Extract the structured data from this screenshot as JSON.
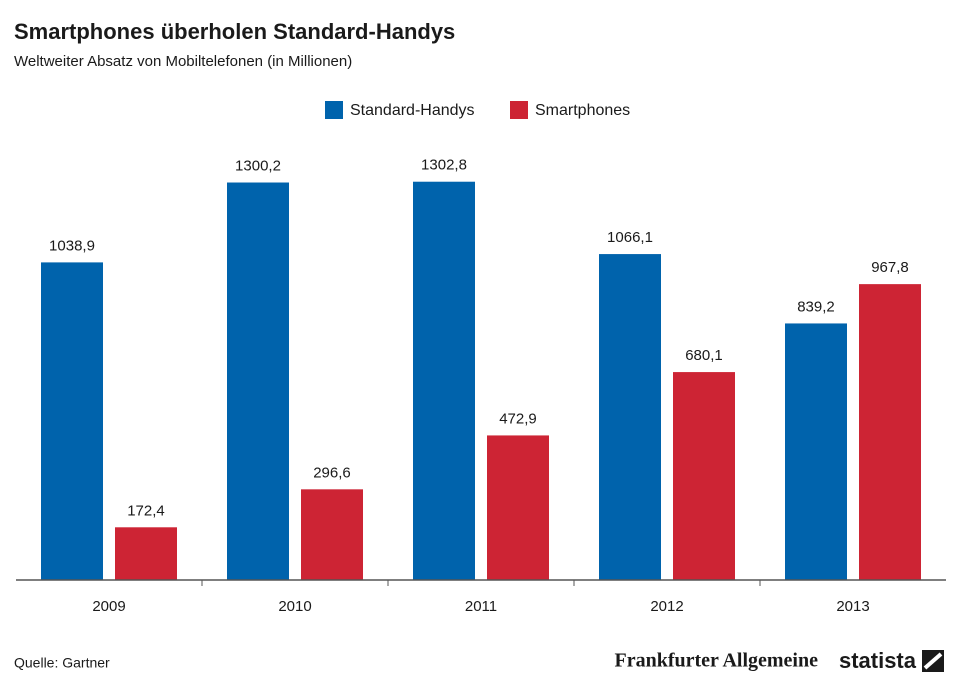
{
  "chart_data": {
    "type": "bar",
    "title": "Smartphones überholen Standard-Handys",
    "subtitle": "Weltweiter Absatz von Mobiltelefonen (in Millionen)",
    "categories": [
      "2009",
      "2010",
      "2011",
      "2012",
      "2013"
    ],
    "series": [
      {
        "name": "Standard-Handys",
        "color": "#0063ac",
        "values": [
          1038.9,
          1300.2,
          1302.8,
          1066.1,
          839.2
        ],
        "value_labels": [
          "1038,9",
          "1300,2",
          "1302,8",
          "1066,1",
          "839,2"
        ]
      },
      {
        "name": "Smartphones",
        "color": "#cd2434",
        "values": [
          172.4,
          296.6,
          472.9,
          680.1,
          967.8
        ],
        "value_labels": [
          "172,4",
          "296,6",
          "472,9",
          "680,1",
          "967,8"
        ]
      }
    ],
    "ylim": [
      0,
      1400
    ],
    "source": "Quelle: Gartner",
    "logos": [
      "Frankfurter Allgemeine",
      "statista"
    ]
  }
}
